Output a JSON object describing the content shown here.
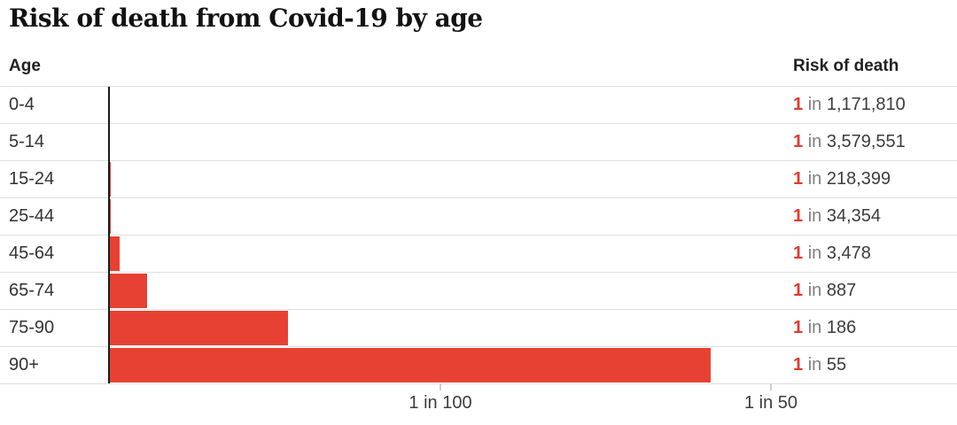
{
  "title": "Risk of death from Covid-19 by age",
  "columns": {
    "left": "Age",
    "right": "Risk of death"
  },
  "rows": [
    {
      "age": "0-4",
      "numerator": "1",
      "connector": "in",
      "denominator": "1,171,810"
    },
    {
      "age": "5-14",
      "numerator": "1",
      "connector": "in",
      "denominator": "3,579,551"
    },
    {
      "age": "15-24",
      "numerator": "1",
      "connector": "in",
      "denominator": "218,399"
    },
    {
      "age": "25-44",
      "numerator": "1",
      "connector": "in",
      "denominator": "34,354"
    },
    {
      "age": "45-64",
      "numerator": "1",
      "connector": "in",
      "denominator": "3,478"
    },
    {
      "age": "65-74",
      "numerator": "1",
      "connector": "in",
      "denominator": "887"
    },
    {
      "age": "75-90",
      "numerator": "1",
      "connector": "in",
      "denominator": "186"
    },
    {
      "age": "90+",
      "numerator": "1",
      "connector": "in",
      "denominator": "55"
    }
  ],
  "x_axis": {
    "ticks": [
      {
        "label": "1 in 100"
      },
      {
        "label": "1 in 50"
      }
    ]
  },
  "colors": {
    "bar": "#e74133",
    "accent_number": "#e23a2a",
    "gridline": "#dedede",
    "axis_line": "#1a1a1a"
  },
  "chart_data": {
    "type": "bar",
    "orientation": "horizontal",
    "title": "Risk of death from Covid-19 by age",
    "categories": [
      "0-4",
      "5-14",
      "15-24",
      "25-44",
      "45-64",
      "65-74",
      "75-90",
      "90+"
    ],
    "values_one_in": [
      1171810,
      3579551,
      218399,
      34354,
      3478,
      887,
      186,
      55
    ],
    "values_probability": [
      8.5e-07,
      2.8e-07,
      4.58e-06,
      2.91e-05,
      0.000288,
      0.001127,
      0.005376,
      0.018182
    ],
    "value_labels": [
      "1 in 1,171,810",
      "1 in 3,579,551",
      "1 in 218,399",
      "1 in 34,354",
      "1 in 3,478",
      "1 in 887",
      "1 in 186",
      "1 in 55"
    ],
    "x_ticks": [
      "1 in 100",
      "1 in 50"
    ],
    "x_tick_probabilities": [
      0.01,
      0.02
    ],
    "xlabel": "",
    "ylabel": "Age",
    "value_column_header": "Risk of death",
    "scale": "linear in probability of death; origin at 0",
    "xlim_probability": [
      0,
      0.0222
    ],
    "grid": "horizontal row separator lines only",
    "legend": "none"
  }
}
